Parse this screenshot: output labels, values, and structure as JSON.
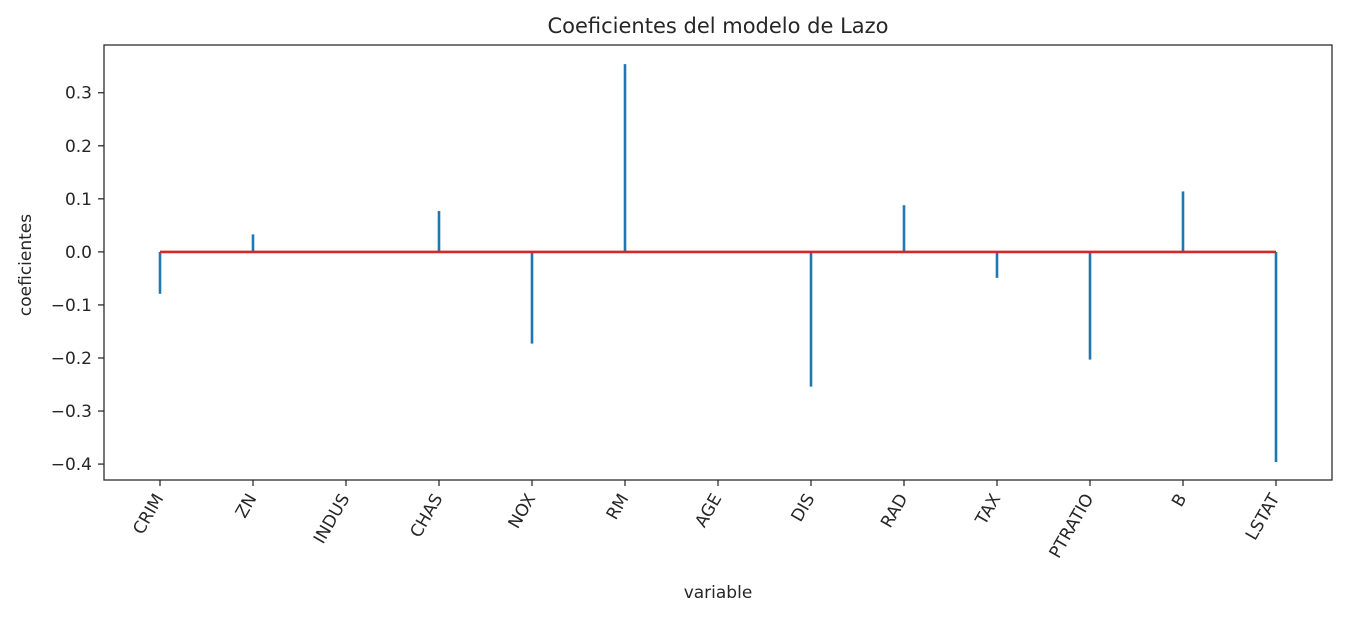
{
  "chart_data": {
    "type": "stem",
    "title": "Coeficientes del modelo de Lazo",
    "xlabel": "variable",
    "ylabel": "coeficientes",
    "categories": [
      "CRIM",
      "ZN",
      "INDUS",
      "CHAS",
      "NOX",
      "RM",
      "AGE",
      "DIS",
      "RAD",
      "TAX",
      "PTRATIO",
      "B",
      "LSTAT"
    ],
    "values": [
      -0.079,
      0.033,
      0.0,
      0.077,
      -0.173,
      0.354,
      0.0,
      -0.254,
      0.088,
      -0.049,
      -0.203,
      0.114,
      -0.396
    ],
    "ylim": [
      -0.43,
      0.39
    ],
    "yticks": [
      -0.4,
      -0.3,
      -0.2,
      -0.1,
      0.0,
      0.1,
      0.2,
      0.3
    ],
    "ytick_labels": [
      "−0.4",
      "−0.3",
      "−0.2",
      "−0.1",
      "0.0",
      "0.1",
      "0.2",
      "0.3"
    ],
    "stem_color": "#1f77b4",
    "baseline_color": "#d62728",
    "grid": false
  }
}
